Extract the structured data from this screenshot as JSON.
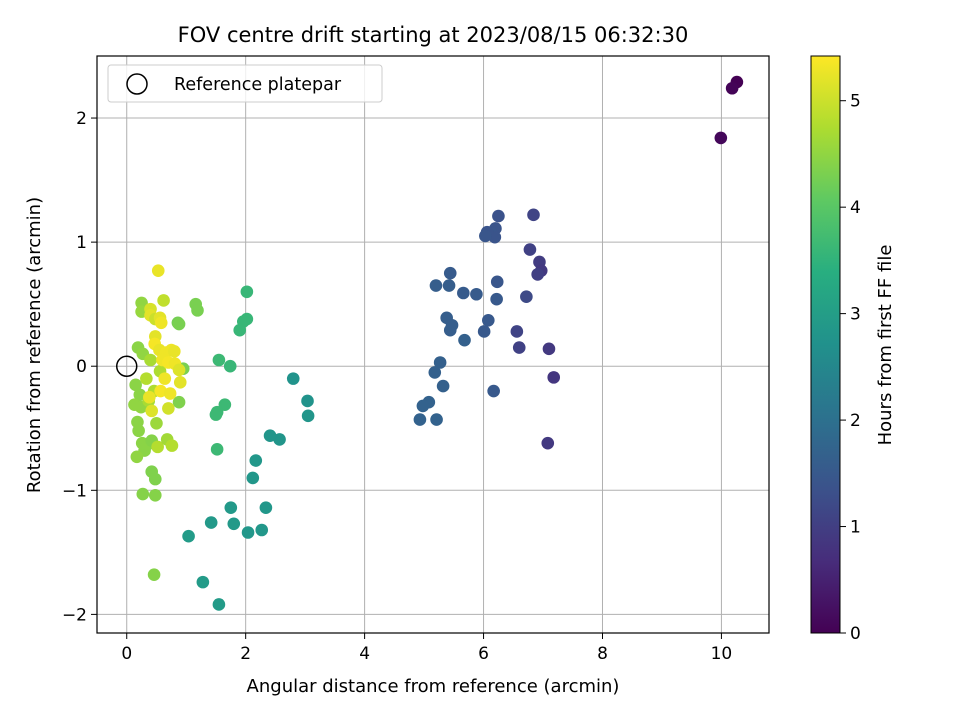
{
  "chart_data": {
    "type": "scatter",
    "title": "FOV centre drift starting at 2023/08/15 06:32:30",
    "xlabel": "Angular distance from reference (arcmin)",
    "ylabel": "Rotation from reference (arcmin)",
    "xlim": [
      -0.5,
      10.8
    ],
    "ylim": [
      -2.15,
      2.5
    ],
    "xticks": [
      0,
      2,
      4,
      6,
      8,
      10
    ],
    "yticks": [
      -2,
      -1,
      0,
      1,
      2
    ],
    "grid": true,
    "legend": {
      "location": "upper left",
      "entries": [
        "Reference platepar"
      ]
    },
    "reference_point": {
      "x": 0,
      "y": 0
    },
    "colorbar": {
      "label": "Hours from first FF file",
      "range": [
        0,
        5.42
      ],
      "ticks": [
        0,
        1,
        2,
        3,
        4,
        5
      ],
      "colormap": "viridis"
    },
    "points": [
      {
        "x": 10.26,
        "y": 2.29,
        "t": 0.0
      },
      {
        "x": 10.18,
        "y": 2.24,
        "t": 0.05
      },
      {
        "x": 9.99,
        "y": 1.84,
        "t": 0.1
      },
      {
        "x": 6.84,
        "y": 1.22,
        "t": 1.1
      },
      {
        "x": 6.78,
        "y": 0.94,
        "t": 1.05
      },
      {
        "x": 6.94,
        "y": 0.84,
        "t": 0.95
      },
      {
        "x": 6.97,
        "y": 0.77,
        "t": 0.9
      },
      {
        "x": 6.91,
        "y": 0.74,
        "t": 1.0
      },
      {
        "x": 6.72,
        "y": 0.56,
        "t": 1.2
      },
      {
        "x": 6.56,
        "y": 0.28,
        "t": 1.1
      },
      {
        "x": 6.6,
        "y": 0.15,
        "t": 1.05
      },
      {
        "x": 7.1,
        "y": 0.14,
        "t": 0.9
      },
      {
        "x": 7.18,
        "y": -0.09,
        "t": 0.85
      },
      {
        "x": 7.08,
        "y": -0.62,
        "t": 0.9
      },
      {
        "x": 6.25,
        "y": 1.21,
        "t": 1.35
      },
      {
        "x": 6.2,
        "y": 1.11,
        "t": 1.4
      },
      {
        "x": 6.13,
        "y": 1.07,
        "t": 1.45
      },
      {
        "x": 6.19,
        "y": 1.04,
        "t": 1.4
      },
      {
        "x": 6.06,
        "y": 1.08,
        "t": 1.4
      },
      {
        "x": 6.03,
        "y": 1.05,
        "t": 1.45
      },
      {
        "x": 6.23,
        "y": 0.68,
        "t": 1.45
      },
      {
        "x": 6.22,
        "y": 0.54,
        "t": 1.5
      },
      {
        "x": 6.08,
        "y": 0.37,
        "t": 1.5
      },
      {
        "x": 6.01,
        "y": 0.28,
        "t": 1.5
      },
      {
        "x": 5.88,
        "y": 0.58,
        "t": 1.55
      },
      {
        "x": 5.66,
        "y": 0.59,
        "t": 1.55
      },
      {
        "x": 5.44,
        "y": 0.75,
        "t": 1.55
      },
      {
        "x": 5.42,
        "y": 0.65,
        "t": 1.6
      },
      {
        "x": 5.2,
        "y": 0.65,
        "t": 1.6
      },
      {
        "x": 5.38,
        "y": 0.39,
        "t": 1.6
      },
      {
        "x": 5.47,
        "y": 0.33,
        "t": 1.6
      },
      {
        "x": 5.44,
        "y": 0.29,
        "t": 1.6
      },
      {
        "x": 5.68,
        "y": 0.21,
        "t": 1.65
      },
      {
        "x": 5.27,
        "y": 0.03,
        "t": 1.65
      },
      {
        "x": 5.18,
        "y": -0.05,
        "t": 1.65
      },
      {
        "x": 5.32,
        "y": -0.16,
        "t": 1.65
      },
      {
        "x": 5.08,
        "y": -0.29,
        "t": 1.7
      },
      {
        "x": 4.98,
        "y": -0.32,
        "t": 1.7
      },
      {
        "x": 4.93,
        "y": -0.43,
        "t": 1.7
      },
      {
        "x": 5.21,
        "y": -0.43,
        "t": 1.7
      },
      {
        "x": 6.17,
        "y": -0.2,
        "t": 1.5
      },
      {
        "x": 2.8,
        "y": -0.1,
        "t": 2.75
      },
      {
        "x": 3.04,
        "y": -0.28,
        "t": 2.75
      },
      {
        "x": 3.05,
        "y": -0.4,
        "t": 2.8
      },
      {
        "x": 2.57,
        "y": -0.59,
        "t": 2.8
      },
      {
        "x": 2.41,
        "y": -0.56,
        "t": 2.8
      },
      {
        "x": 2.17,
        "y": -0.76,
        "t": 2.85
      },
      {
        "x": 2.12,
        "y": -0.9,
        "t": 2.85
      },
      {
        "x": 2.34,
        "y": -1.14,
        "t": 2.85
      },
      {
        "x": 2.27,
        "y": -1.32,
        "t": 2.85
      },
      {
        "x": 2.04,
        "y": -1.34,
        "t": 2.85
      },
      {
        "x": 1.8,
        "y": -1.27,
        "t": 2.9
      },
      {
        "x": 1.75,
        "y": -1.14,
        "t": 2.9
      },
      {
        "x": 1.42,
        "y": -1.26,
        "t": 2.9
      },
      {
        "x": 1.04,
        "y": -1.37,
        "t": 2.95
      },
      {
        "x": 1.28,
        "y": -1.74,
        "t": 2.95
      },
      {
        "x": 1.55,
        "y": -1.92,
        "t": 2.95
      },
      {
        "x": 2.02,
        "y": 0.6,
        "t": 3.6
      },
      {
        "x": 2.02,
        "y": 0.38,
        "t": 3.6
      },
      {
        "x": 1.96,
        "y": 0.36,
        "t": 3.6
      },
      {
        "x": 1.9,
        "y": 0.29,
        "t": 3.6
      },
      {
        "x": 1.74,
        "y": 0.0,
        "t": 3.6
      },
      {
        "x": 1.55,
        "y": 0.05,
        "t": 3.65
      },
      {
        "x": 1.65,
        "y": -0.31,
        "t": 3.65
      },
      {
        "x": 1.52,
        "y": -0.37,
        "t": 3.65
      },
      {
        "x": 1.5,
        "y": -0.39,
        "t": 3.65
      },
      {
        "x": 1.52,
        "y": -0.67,
        "t": 3.65
      },
      {
        "x": 1.16,
        "y": 0.5,
        "t": 4.3
      },
      {
        "x": 1.19,
        "y": 0.45,
        "t": 4.3
      },
      {
        "x": 0.86,
        "y": 0.35,
        "t": 4.25
      },
      {
        "x": 0.88,
        "y": 0.34,
        "t": 4.3
      },
      {
        "x": 0.95,
        "y": -0.02,
        "t": 4.3
      },
      {
        "x": 0.88,
        "y": -0.29,
        "t": 4.35
      },
      {
        "x": 0.42,
        "y": -0.85,
        "t": 4.35
      },
      {
        "x": 0.48,
        "y": -0.91,
        "t": 4.35
      },
      {
        "x": 0.27,
        "y": -1.03,
        "t": 4.4
      },
      {
        "x": 0.48,
        "y": -1.04,
        "t": 4.4
      },
      {
        "x": 0.46,
        "y": -1.68,
        "t": 4.4
      },
      {
        "x": 0.25,
        "y": 0.51,
        "t": 4.5
      },
      {
        "x": 0.25,
        "y": 0.44,
        "t": 4.55
      },
      {
        "x": 0.19,
        "y": 0.15,
        "t": 4.45
      },
      {
        "x": 0.27,
        "y": 0.1,
        "t": 4.5
      },
      {
        "x": 0.15,
        "y": -0.15,
        "t": 4.45
      },
      {
        "x": 0.22,
        "y": -0.23,
        "t": 4.45
      },
      {
        "x": 0.13,
        "y": -0.31,
        "t": 4.5
      },
      {
        "x": 0.24,
        "y": -0.33,
        "t": 4.5
      },
      {
        "x": 0.18,
        "y": -0.45,
        "t": 4.45
      },
      {
        "x": 0.2,
        "y": -0.52,
        "t": 4.45
      },
      {
        "x": 0.26,
        "y": -0.62,
        "t": 4.45
      },
      {
        "x": 0.3,
        "y": -0.68,
        "t": 4.45
      },
      {
        "x": 0.17,
        "y": -0.73,
        "t": 4.5
      },
      {
        "x": 0.35,
        "y": -0.63,
        "t": 4.45
      },
      {
        "x": 0.42,
        "y": -0.6,
        "t": 4.4
      },
      {
        "x": 0.5,
        "y": -0.46,
        "t": 4.6
      },
      {
        "x": 0.37,
        "y": -0.28,
        "t": 4.7
      },
      {
        "x": 0.46,
        "y": -0.2,
        "t": 4.75
      },
      {
        "x": 0.33,
        "y": -0.1,
        "t": 4.8
      },
      {
        "x": 0.4,
        "y": 0.05,
        "t": 4.7
      },
      {
        "x": 0.56,
        "y": -0.04,
        "t": 4.75
      },
      {
        "x": 0.52,
        "y": -0.65,
        "t": 4.8
      },
      {
        "x": 0.68,
        "y": -0.59,
        "t": 4.65
      },
      {
        "x": 0.76,
        "y": -0.64,
        "t": 4.8
      },
      {
        "x": 0.62,
        "y": 0.53,
        "t": 4.9
      },
      {
        "x": 0.53,
        "y": 0.77,
        "t": 5.25
      },
      {
        "x": 0.4,
        "y": 0.46,
        "t": 5.1
      },
      {
        "x": 0.4,
        "y": 0.41,
        "t": 5.2
      },
      {
        "x": 0.48,
        "y": 0.38,
        "t": 5.0
      },
      {
        "x": 0.56,
        "y": 0.39,
        "t": 5.2
      },
      {
        "x": 0.58,
        "y": 0.35,
        "t": 5.3
      },
      {
        "x": 0.48,
        "y": 0.24,
        "t": 5.2
      },
      {
        "x": 0.47,
        "y": 0.18,
        "t": 5.35
      },
      {
        "x": 0.55,
        "y": 0.13,
        "t": 5.25
      },
      {
        "x": 0.66,
        "y": 0.11,
        "t": 5.3
      },
      {
        "x": 0.75,
        "y": 0.13,
        "t": 5.3
      },
      {
        "x": 0.8,
        "y": 0.12,
        "t": 5.25
      },
      {
        "x": 0.6,
        "y": 0.05,
        "t": 5.3
      },
      {
        "x": 0.7,
        "y": 0.03,
        "t": 5.35
      },
      {
        "x": 0.81,
        "y": 0.02,
        "t": 5.3
      },
      {
        "x": 0.88,
        "y": -0.03,
        "t": 5.15
      },
      {
        "x": 0.64,
        "y": -0.1,
        "t": 5.3
      },
      {
        "x": 0.9,
        "y": -0.13,
        "t": 5.2
      },
      {
        "x": 0.57,
        "y": -0.2,
        "t": 5.35
      },
      {
        "x": 0.73,
        "y": -0.22,
        "t": 5.3
      },
      {
        "x": 0.7,
        "y": -0.34,
        "t": 5.05
      },
      {
        "x": 0.42,
        "y": -0.36,
        "t": 5.15
      },
      {
        "x": 0.38,
        "y": -0.25,
        "t": 5.25
      }
    ]
  }
}
